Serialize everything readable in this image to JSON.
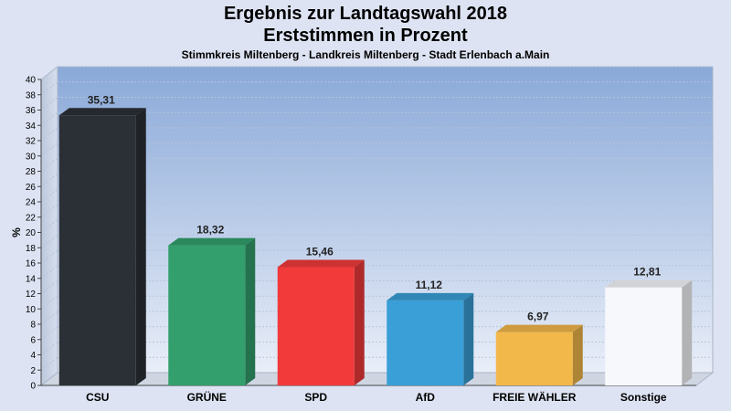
{
  "chart_data": {
    "type": "bar",
    "title": "Ergebnis zur Landtagswahl 2018",
    "subtitle_line": "Erststimmen in Prozent",
    "subtitle": "Stimmkreis Miltenberg - Landkreis Miltenberg - Stadt Erlenbach a.Main",
    "ylabel": "%",
    "ylim": [
      0,
      40
    ],
    "ytick_step": 2,
    "grid": true,
    "categories": [
      "CSU",
      "GRÜNE",
      "SPD",
      "AfD",
      "FREIE WÄHLER",
      "Sonstige"
    ],
    "values": [
      35.31,
      18.32,
      15.46,
      11.12,
      6.97,
      12.81
    ],
    "value_labels": [
      "35,31",
      "18,32",
      "15,46",
      "11,12",
      "6,97",
      "12,81"
    ],
    "colors": [
      "#2b2f36",
      "#339f6c",
      "#f23a3a",
      "#3a9fd6",
      "#f2b84a",
      "#f7f8fc"
    ]
  }
}
